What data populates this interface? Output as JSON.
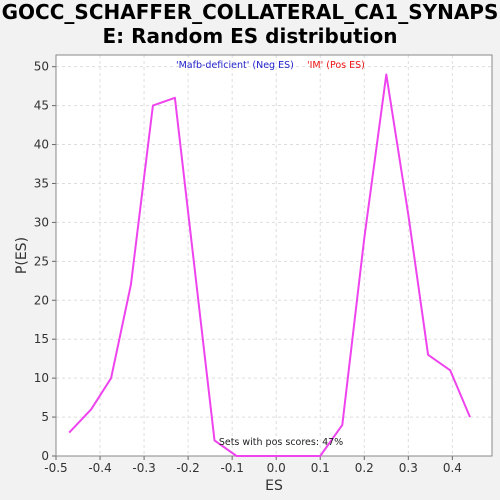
{
  "chart_data": {
    "type": "line",
    "title_lines": [
      "GOCC_SCHAFFER_COLLATERAL_CA1_SYNAPS",
      "E: Random ES distribution"
    ],
    "xlabel": "ES",
    "ylabel": "P(ES)",
    "xlim": [
      -0.5,
      0.49
    ],
    "ylim": [
      0,
      51.5
    ],
    "x_ticks": [
      "-0.5",
      "-0.4",
      "-0.3",
      "-0.2",
      "-0.1",
      "0.0",
      "0.1",
      "0.2",
      "0.3",
      "0.4"
    ],
    "y_ticks": [
      "0",
      "5",
      "10",
      "15",
      "20",
      "25",
      "30",
      "35",
      "40",
      "45",
      "50"
    ],
    "grid": true,
    "legend": [
      {
        "label": "'Mafb-deficient' (Neg ES)",
        "color": "#2222cc"
      },
      {
        "label": "'IM' (Pos ES)",
        "color": "#ee1111"
      }
    ],
    "annotation": "Sets with pos scores: 47%",
    "series": [
      {
        "color": "#ee44ee",
        "points": [
          [
            -0.47,
            3
          ],
          [
            -0.42,
            6
          ],
          [
            -0.375,
            10
          ],
          [
            -0.33,
            22
          ],
          [
            -0.28,
            45
          ],
          [
            -0.23,
            46
          ],
          [
            -0.14,
            2
          ],
          [
            -0.09,
            0
          ],
          [
            0.0,
            0
          ],
          [
            0.1,
            0
          ],
          [
            0.15,
            4
          ],
          [
            0.2,
            28
          ],
          [
            0.25,
            49
          ],
          [
            0.3,
            31
          ],
          [
            0.345,
            13
          ],
          [
            0.395,
            11
          ],
          [
            0.44,
            5
          ]
        ]
      }
    ]
  }
}
